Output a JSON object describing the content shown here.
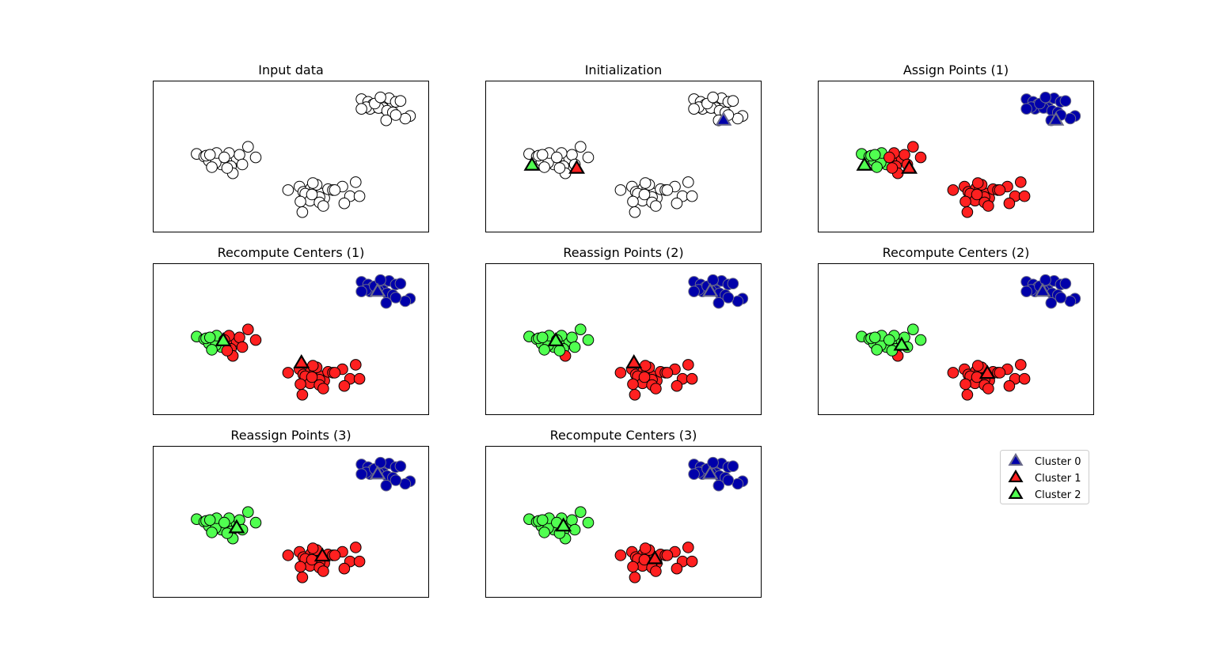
{
  "figure": {
    "panel_titles": [
      "Input data",
      "Initialization",
      "Assign Points (1)",
      "Recompute Centers (1)",
      "Reassign Points (2)",
      "Recompute Centers (2)",
      "Reassign Points (3)",
      "Recompute Centers (3)"
    ],
    "legend": [
      "Cluster 0",
      "Cluster 1",
      "Cluster 2"
    ]
  },
  "colors": {
    "unassigned_fill": "#ffffff",
    "cluster_0": "#0000aa",
    "cluster_1": "#ff2020",
    "cluster_2": "#50ff50",
    "cluster_0_edge": "#6a6a8a",
    "center_edge": "#000000"
  },
  "chart_data": [
    {
      "type": "scatter",
      "title": "Input data",
      "xlim": [
        -11.9,
        2.6
      ],
      "ylim": [
        -11.0,
        6.2
      ],
      "grid": false,
      "points": {
        "x": [
          -9.6,
          -9.2,
          -8.95,
          -8.7,
          -8.45,
          -8.2,
          -8.0,
          -7.75,
          -7.5,
          -7.8,
          -8.3,
          -8.6,
          -9.1,
          -8.8,
          -7.35,
          -7.2,
          -7.7,
          -8.0,
          -7.9,
          -8.55,
          -8.15,
          -8.9,
          -6.9,
          -6.5,
          -4.8,
          -4.2,
          -4.0,
          -3.6,
          -3.4,
          -3.05,
          -2.9,
          -3.9,
          -3.3,
          -2.7,
          -2.45,
          -3.65,
          -4.15,
          -3.15,
          -3.5,
          -1.95,
          -1.25,
          -1.55,
          -1.85,
          -1.05,
          -3.15,
          -4.05,
          -2.95,
          -3.55,
          -2.35,
          -0.95,
          -0.6,
          -0.35,
          0.15,
          0.5,
          0.85,
          1.1,
          0.2,
          -0.3,
          -0.5,
          -0.05,
          -0.7,
          -0.95,
          0.4,
          0.7,
          -0.25,
          0.05,
          1.6,
          1.35,
          0.85,
          0.35
        ],
        "y": [
          -2.1,
          -2.4,
          -2.9,
          -2.3,
          -2.6,
          -2.8,
          -2.7,
          -2.4,
          -2.6,
          -3.5,
          -3.3,
          -3.1,
          -2.3,
          -3.6,
          -2.2,
          -3.3,
          -4.3,
          -3.7,
          -2.0,
          -2.0,
          -2.5,
          -2.2,
          -1.3,
          -2.5,
          -6.2,
          -5.8,
          -6.4,
          -6.0,
          -5.9,
          -6.6,
          -7.1,
          -6.6,
          -5.6,
          -6.1,
          -6.2,
          -7.4,
          -7.5,
          -7.0,
          -5.4,
          -5.8,
          -5.3,
          -6.9,
          -7.7,
          -6.9,
          -7.6,
          -8.7,
          -8.0,
          -6.7,
          -6.2,
          4.1,
          3.8,
          3.5,
          3.7,
          4.2,
          3.8,
          3.9,
          3.1,
          3.2,
          3.0,
          3.1,
          3.2,
          3.0,
          2.8,
          2.6,
          3.6,
          4.3,
          2.2,
          1.9,
          2.3,
          1.7
        ],
        "label": []
      },
      "centers": []
    },
    {
      "type": "scatter",
      "title": "Initialization",
      "xlim": [
        -11.9,
        2.6
      ],
      "ylim": [
        -11.0,
        6.2
      ],
      "grid": false,
      "points": {
        "same_as_panel": 0,
        "label": []
      },
      "centers": [
        {
          "cluster": 0,
          "x": 0.6,
          "y": 1.7
        },
        {
          "cluster": 1,
          "x": -7.1,
          "y": -3.75
        },
        {
          "cluster": 2,
          "x": -9.45,
          "y": -3.4
        }
      ]
    },
    {
      "type": "scatter",
      "title": "Assign Points (1)",
      "xlim": [
        -11.9,
        2.6
      ],
      "ylim": [
        -11.0,
        6.2
      ],
      "grid": false,
      "points": {
        "same_as_panel": 0,
        "label": [
          2,
          2,
          2,
          2,
          2,
          2,
          1,
          1,
          1,
          1,
          2,
          2,
          2,
          2,
          1,
          1,
          1,
          1,
          1,
          2,
          1,
          2,
          1,
          1,
          1,
          1,
          1,
          1,
          1,
          1,
          1,
          1,
          1,
          1,
          1,
          1,
          1,
          1,
          1,
          1,
          1,
          1,
          1,
          1,
          1,
          1,
          1,
          1,
          1,
          0,
          0,
          0,
          0,
          0,
          0,
          0,
          0,
          0,
          0,
          0,
          0,
          0,
          0,
          0,
          0,
          0,
          0,
          0,
          0,
          0
        ]
      },
      "centers": [
        {
          "cluster": 0,
          "x": 0.6,
          "y": 1.7
        },
        {
          "cluster": 1,
          "x": -7.1,
          "y": -3.75
        },
        {
          "cluster": 2,
          "x": -9.45,
          "y": -3.4
        }
      ]
    },
    {
      "type": "scatter",
      "title": "Recompute Centers (1)",
      "xlim": [
        -11.9,
        2.6
      ],
      "ylim": [
        -11.0,
        6.2
      ],
      "grid": false,
      "points": {
        "same_as_panel": 0,
        "label": [
          2,
          2,
          2,
          2,
          2,
          2,
          1,
          1,
          1,
          1,
          2,
          2,
          2,
          2,
          1,
          1,
          1,
          1,
          1,
          2,
          1,
          2,
          1,
          1,
          1,
          1,
          1,
          1,
          1,
          1,
          1,
          1,
          1,
          1,
          1,
          1,
          1,
          1,
          1,
          1,
          1,
          1,
          1,
          1,
          1,
          1,
          1,
          1,
          1,
          0,
          0,
          0,
          0,
          0,
          0,
          0,
          0,
          0,
          0,
          0,
          0,
          0,
          0,
          0,
          0,
          0,
          0,
          0,
          0,
          0
        ]
      },
      "centers": [
        {
          "cluster": 0,
          "x": -0.1,
          "y": 3.0
        },
        {
          "cluster": 1,
          "x": -4.1,
          "y": -5.1
        },
        {
          "cluster": 2,
          "x": -8.2,
          "y": -2.6
        }
      ]
    },
    {
      "type": "scatter",
      "title": "Reassign Points (2)",
      "xlim": [
        -11.9,
        2.6
      ],
      "ylim": [
        -11.0,
        6.2
      ],
      "grid": false,
      "points": {
        "same_as_panel": 0,
        "label": [
          2,
          2,
          2,
          2,
          2,
          2,
          2,
          2,
          2,
          2,
          2,
          2,
          2,
          2,
          2,
          2,
          1,
          2,
          2,
          2,
          2,
          2,
          2,
          2,
          1,
          1,
          1,
          1,
          1,
          1,
          1,
          1,
          1,
          1,
          1,
          1,
          1,
          1,
          1,
          1,
          1,
          1,
          1,
          1,
          1,
          1,
          1,
          1,
          1,
          0,
          0,
          0,
          0,
          0,
          0,
          0,
          0,
          0,
          0,
          0,
          0,
          0,
          0,
          0,
          0,
          0,
          0,
          0,
          0,
          0
        ]
      },
      "centers": [
        {
          "cluster": 0,
          "x": -0.1,
          "y": 3.0
        },
        {
          "cluster": 1,
          "x": -4.1,
          "y": -5.1
        },
        {
          "cluster": 2,
          "x": -8.2,
          "y": -2.6
        }
      ]
    },
    {
      "type": "scatter",
      "title": "Recompute Centers (2)",
      "xlim": [
        -11.9,
        2.6
      ],
      "ylim": [
        -11.0,
        6.2
      ],
      "grid": false,
      "points": {
        "same_as_panel": 0,
        "label": [
          2,
          2,
          2,
          2,
          2,
          2,
          2,
          2,
          2,
          2,
          2,
          2,
          2,
          2,
          2,
          2,
          1,
          2,
          2,
          2,
          2,
          2,
          2,
          2,
          1,
          1,
          1,
          1,
          1,
          1,
          1,
          1,
          1,
          1,
          1,
          1,
          1,
          1,
          1,
          1,
          1,
          1,
          1,
          1,
          1,
          1,
          1,
          1,
          1,
          0,
          0,
          0,
          0,
          0,
          0,
          0,
          0,
          0,
          0,
          0,
          0,
          0,
          0,
          0,
          0,
          0,
          0,
          0,
          0,
          0
        ]
      },
      "centers": [
        {
          "cluster": 0,
          "x": -0.1,
          "y": 3.0
        },
        {
          "cluster": 1,
          "x": -3.0,
          "y": -6.3
        },
        {
          "cluster": 2,
          "x": -7.5,
          "y": -3.1
        }
      ]
    },
    {
      "type": "scatter",
      "title": "Reassign Points (3)",
      "xlim": [
        -11.9,
        2.6
      ],
      "ylim": [
        -11.0,
        6.2
      ],
      "grid": false,
      "points": {
        "same_as_panel": 0,
        "label": [
          2,
          2,
          2,
          2,
          2,
          2,
          2,
          2,
          2,
          2,
          2,
          2,
          2,
          2,
          2,
          2,
          2,
          2,
          2,
          2,
          2,
          2,
          2,
          2,
          1,
          1,
          1,
          1,
          1,
          1,
          1,
          1,
          1,
          1,
          1,
          1,
          1,
          1,
          1,
          1,
          1,
          1,
          1,
          1,
          1,
          1,
          1,
          1,
          1,
          0,
          0,
          0,
          0,
          0,
          0,
          0,
          0,
          0,
          0,
          0,
          0,
          0,
          0,
          0,
          0,
          0,
          0,
          0,
          0,
          0
        ]
      },
      "centers": [
        {
          "cluster": 0,
          "x": -0.1,
          "y": 3.0
        },
        {
          "cluster": 1,
          "x": -3.0,
          "y": -6.3
        },
        {
          "cluster": 2,
          "x": -7.5,
          "y": -3.1
        }
      ]
    },
    {
      "type": "scatter",
      "title": "Recompute Centers (3)",
      "xlim": [
        -11.9,
        2.6
      ],
      "ylim": [
        -11.0,
        6.2
      ],
      "grid": false,
      "points": {
        "same_as_panel": 0,
        "label": [
          2,
          2,
          2,
          2,
          2,
          2,
          2,
          2,
          2,
          2,
          2,
          2,
          2,
          2,
          2,
          2,
          2,
          2,
          2,
          2,
          2,
          2,
          2,
          2,
          1,
          1,
          1,
          1,
          1,
          1,
          1,
          1,
          1,
          1,
          1,
          1,
          1,
          1,
          1,
          1,
          1,
          1,
          1,
          1,
          1,
          1,
          1,
          1,
          1,
          0,
          0,
          0,
          0,
          0,
          0,
          0,
          0,
          0,
          0,
          0,
          0,
          0,
          0,
          0,
          0,
          0,
          0,
          0,
          0,
          0
        ]
      },
      "centers": [
        {
          "cluster": 0,
          "x": -0.1,
          "y": 3.0
        },
        {
          "cluster": 1,
          "x": -3.0,
          "y": -6.6
        },
        {
          "cluster": 2,
          "x": -7.8,
          "y": -2.9
        }
      ]
    }
  ]
}
